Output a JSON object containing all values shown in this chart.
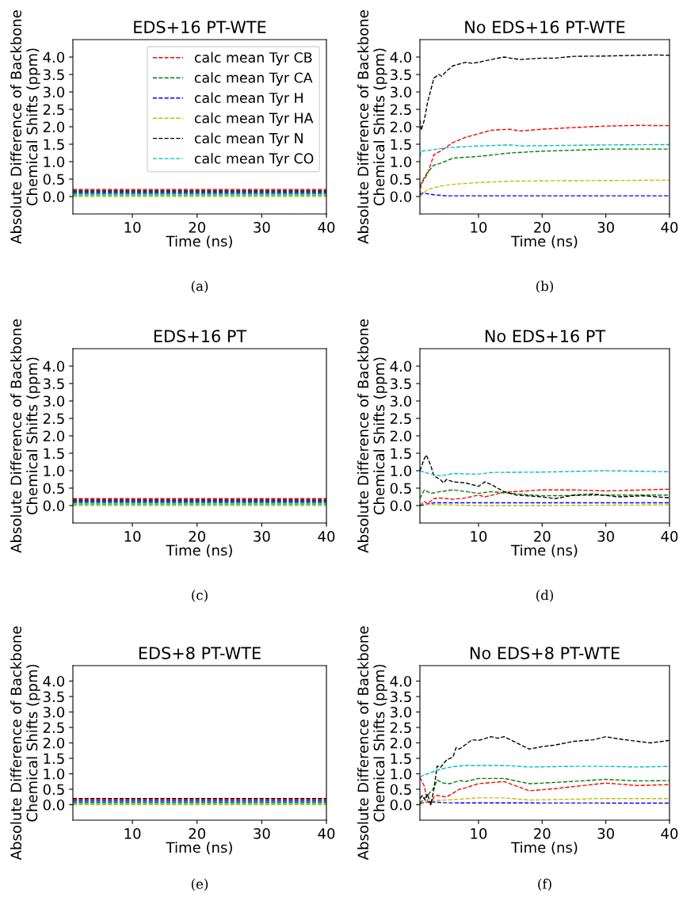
{
  "chart_data": [
    {
      "type": "line",
      "title": "EDS+16 PT-WTE",
      "xlabel": "Time (ns)",
      "ylabel": "Absolute Difference of Backbone\nChemical Shifts (ppm)",
      "xlim": [
        0.8,
        40
      ],
      "xticks": [
        10,
        20,
        30,
        40
      ],
      "ylim": [
        -0.5,
        4.5
      ],
      "yticks": [
        {
          "value": 0,
          "label": "0.0"
        },
        {
          "value": 0.5,
          "label": "0.5"
        },
        {
          "value": 1,
          "label": "1.0"
        },
        {
          "value": 1.5,
          "label": "1.5"
        },
        {
          "value": 2,
          "label": "2.0"
        },
        {
          "value": 2.5,
          "label": "2.5"
        },
        {
          "value": 3,
          "label": "3.0"
        },
        {
          "value": 3.5,
          "label": "3.5"
        },
        {
          "value": 4,
          "label": "4.0"
        }
      ],
      "grid": false,
      "legend": "top right",
      "line_style": "dashed",
      "annotations": [
        "(a)"
      ],
      "series": [
        {
          "name": "calc mean Tyr CB",
          "color": "#ff0000",
          "x": [
            0.8,
            5,
            40
          ],
          "values": [
            0.2,
            0.2,
            0.2
          ]
        },
        {
          "name": "calc mean Tyr CA",
          "color": "#008000",
          "x": [
            0.8,
            5,
            40
          ],
          "values": [
            0.08,
            0.08,
            0.08
          ]
        },
        {
          "name": "calc mean Tyr H",
          "color": "#0000ff",
          "x": [
            0.8,
            5,
            40
          ],
          "values": [
            0.12,
            0.12,
            0.12
          ]
        },
        {
          "name": "calc mean Tyr HA",
          "color": "#bfbf00",
          "x": [
            0.8,
            5,
            40
          ],
          "values": [
            0.0,
            0.0,
            0.0
          ]
        },
        {
          "name": "calc mean Tyr N",
          "color": "#000000",
          "x": [
            0.8,
            5,
            40
          ],
          "values": [
            0.16,
            0.16,
            0.16
          ]
        },
        {
          "name": "calc mean Tyr CO",
          "color": "#00bfbf",
          "x": [
            0.8,
            5,
            40
          ],
          "values": [
            0.04,
            0.04,
            0.04
          ]
        }
      ]
    },
    {
      "type": "line",
      "title": "No EDS+16 PT-WTE",
      "xlabel": "Time (ns)",
      "ylabel": "Absolute Difference of Backbone\nChemical Shifts (ppm)",
      "xlim": [
        0.8,
        40
      ],
      "xticks": [
        10,
        20,
        30,
        40
      ],
      "ylim": [
        -0.5,
        4.5
      ],
      "yticks": [
        {
          "value": 0,
          "label": "0.0"
        },
        {
          "value": 0.5,
          "label": "0.5"
        },
        {
          "value": 1,
          "label": "1.0"
        },
        {
          "value": 1.5,
          "label": "1.5"
        },
        {
          "value": 2,
          "label": "2.0"
        },
        {
          "value": 2.5,
          "label": "2.5"
        },
        {
          "value": 3,
          "label": "3.0"
        },
        {
          "value": 3.5,
          "label": "3.5"
        },
        {
          "value": 4,
          "label": "4.0"
        }
      ],
      "grid": false,
      "line_style": "dashed",
      "annotations": [
        "(b)"
      ],
      "series": [
        {
          "color": "#ff0000",
          "x": [
            0.8,
            1,
            1.5,
            2,
            3,
            4,
            6,
            8,
            10,
            12,
            15,
            16.5,
            20,
            25,
            30,
            35,
            40
          ],
          "values": [
            0.05,
            0.35,
            0.5,
            0.65,
            1.2,
            1.3,
            1.55,
            1.7,
            1.8,
            1.9,
            1.93,
            1.88,
            1.93,
            1.98,
            2.02,
            2.04,
            2.03
          ]
        },
        {
          "color": "#008000",
          "x": [
            0.8,
            1.5,
            2,
            3,
            4,
            6,
            10,
            15,
            20,
            30,
            40
          ],
          "values": [
            0.3,
            0.55,
            0.7,
            0.9,
            0.95,
            1.1,
            1.15,
            1.25,
            1.3,
            1.36,
            1.36
          ]
        },
        {
          "color": "#0000ff",
          "x": [
            0.8,
            1.2,
            3,
            5,
            40
          ],
          "values": [
            0.05,
            0.1,
            0.05,
            0.02,
            0.02
          ]
        },
        {
          "color": "#bfbf00",
          "x": [
            0.8,
            2,
            4,
            6,
            10,
            15,
            20,
            30,
            40
          ],
          "values": [
            0.0,
            0.2,
            0.3,
            0.35,
            0.4,
            0.44,
            0.45,
            0.46,
            0.47
          ]
        },
        {
          "color": "#000000",
          "x": [
            0.8,
            1,
            1.5,
            2,
            3,
            3.8,
            4.2,
            5,
            6,
            8,
            9,
            10,
            12,
            14,
            15,
            16.5,
            20,
            22,
            25,
            30,
            35,
            38,
            40
          ],
          "values": [
            2.2,
            1.9,
            2.2,
            2.7,
            3.4,
            3.5,
            3.45,
            3.6,
            3.75,
            3.85,
            3.82,
            3.85,
            3.93,
            4.0,
            3.97,
            3.93,
            3.97,
            3.97,
            4.02,
            4.03,
            4.05,
            4.06,
            4.05
          ]
        },
        {
          "color": "#00bfbf",
          "x": [
            0.8,
            1,
            2,
            5,
            10,
            15,
            17,
            20,
            30,
            40
          ],
          "values": [
            1.15,
            1.3,
            1.32,
            1.4,
            1.45,
            1.48,
            1.45,
            1.46,
            1.48,
            1.49
          ]
        }
      ]
    },
    {
      "type": "line",
      "title": "EDS+16 PT",
      "xlabel": "Time (ns)",
      "ylabel": "Absolute Difference of Backbone\nChemical Shifts (ppm)",
      "xlim": [
        0.8,
        40
      ],
      "xticks": [
        10,
        20,
        30,
        40
      ],
      "ylim": [
        -0.5,
        4.5
      ],
      "yticks": [
        {
          "value": 0,
          "label": "0.0"
        },
        {
          "value": 0.5,
          "label": "0.5"
        },
        {
          "value": 1,
          "label": "1.0"
        },
        {
          "value": 1.5,
          "label": "1.5"
        },
        {
          "value": 2,
          "label": "2.0"
        },
        {
          "value": 2.5,
          "label": "2.5"
        },
        {
          "value": 3,
          "label": "3.0"
        },
        {
          "value": 3.5,
          "label": "3.5"
        },
        {
          "value": 4,
          "label": "4.0"
        }
      ],
      "grid": false,
      "line_style": "dashed",
      "annotations": [
        "(c)"
      ],
      "series": [
        {
          "color": "#ff0000",
          "x": [
            0.8,
            5,
            40
          ],
          "values": [
            0.2,
            0.2,
            0.2
          ]
        },
        {
          "color": "#008000",
          "x": [
            0.8,
            5,
            40
          ],
          "values": [
            0.08,
            0.08,
            0.08
          ]
        },
        {
          "color": "#0000ff",
          "x": [
            0.8,
            5,
            40
          ],
          "values": [
            0.12,
            0.12,
            0.12
          ]
        },
        {
          "color": "#bfbf00",
          "x": [
            0.8,
            5,
            40
          ],
          "values": [
            0.0,
            0.0,
            0.0
          ]
        },
        {
          "color": "#000000",
          "x": [
            0.8,
            5,
            40
          ],
          "values": [
            0.16,
            0.16,
            0.16
          ]
        },
        {
          "color": "#00bfbf",
          "x": [
            0.8,
            5,
            40
          ],
          "values": [
            0.04,
            0.04,
            0.04
          ]
        }
      ]
    },
    {
      "type": "line",
      "title": "No EDS+16 PT",
      "xlabel": "Time (ns)",
      "ylabel": "Absolute Difference of Backbone\nChemical Shifts (ppm)",
      "xlim": [
        0.8,
        40
      ],
      "xticks": [
        10,
        20,
        30,
        40
      ],
      "ylim": [
        -0.5,
        4.5
      ],
      "yticks": [
        {
          "value": 0,
          "label": "0.0"
        },
        {
          "value": 0.5,
          "label": "0.5"
        },
        {
          "value": 1,
          "label": "1.0"
        },
        {
          "value": 1.5,
          "label": "1.5"
        },
        {
          "value": 2,
          "label": "2.0"
        },
        {
          "value": 2.5,
          "label": "2.5"
        },
        {
          "value": 3,
          "label": "3.0"
        },
        {
          "value": 3.5,
          "label": "3.5"
        },
        {
          "value": 4,
          "label": "4.0"
        }
      ],
      "grid": false,
      "line_style": "dashed",
      "annotations": [
        "(d)"
      ],
      "series": [
        {
          "color": "#ff0000",
          "x": [
            0.8,
            1.5,
            2,
            3,
            4,
            6,
            8,
            10,
            11,
            14,
            20,
            25,
            30,
            40
          ],
          "values": [
            0.0,
            0.12,
            0.05,
            0.2,
            0.22,
            0.18,
            0.22,
            0.3,
            0.25,
            0.38,
            0.45,
            0.45,
            0.42,
            0.47
          ]
        },
        {
          "color": "#008000",
          "x": [
            0.8,
            1.5,
            2.5,
            4,
            6,
            8,
            10,
            12,
            15,
            20,
            30,
            40
          ],
          "values": [
            0.2,
            0.45,
            0.35,
            0.4,
            0.45,
            0.4,
            0.35,
            0.4,
            0.35,
            0.28,
            0.3,
            0.3
          ]
        },
        {
          "color": "#0000ff",
          "x": [
            0.8,
            3,
            40
          ],
          "values": [
            0.0,
            0.08,
            0.08
          ]
        },
        {
          "color": "#bfbf00",
          "x": [
            0.8,
            2,
            10,
            20,
            40
          ],
          "values": [
            0.05,
            0.03,
            0.0,
            0.0,
            0.02
          ]
        },
        {
          "color": "#000000",
          "x": [
            0.8,
            1.5,
            1.8,
            2.5,
            3,
            4,
            4.5,
            5,
            6,
            8,
            10,
            11,
            12,
            14,
            16,
            20,
            22,
            25,
            28,
            32,
            36,
            40
          ],
          "values": [
            1.0,
            1.35,
            1.45,
            1.15,
            0.85,
            0.75,
            0.65,
            0.75,
            0.68,
            0.65,
            0.55,
            0.68,
            0.6,
            0.4,
            0.3,
            0.25,
            0.2,
            0.3,
            0.33,
            0.25,
            0.28,
            0.22
          ]
        },
        {
          "color": "#00bfbf",
          "x": [
            0.8,
            2,
            4,
            6,
            10,
            12,
            20,
            30,
            40
          ],
          "values": [
            1.0,
            0.93,
            0.85,
            0.92,
            0.9,
            0.95,
            0.96,
            1.0,
            0.97
          ]
        }
      ]
    },
    {
      "type": "line",
      "title": "EDS+8 PT-WTE",
      "xlabel": "Time (ns)",
      "ylabel": "Absolute Difference of Backbone\nChemical Shifts (ppm)",
      "xlim": [
        0.8,
        40
      ],
      "xticks": [
        10,
        20,
        30,
        40
      ],
      "ylim": [
        -0.5,
        4.5
      ],
      "yticks": [
        {
          "value": 0,
          "label": "0.0"
        },
        {
          "value": 0.5,
          "label": "0.5"
        },
        {
          "value": 1,
          "label": "1.0"
        },
        {
          "value": 1.5,
          "label": "1.5"
        },
        {
          "value": 2,
          "label": "2.0"
        },
        {
          "value": 2.5,
          "label": "2.5"
        },
        {
          "value": 3,
          "label": "3.0"
        },
        {
          "value": 3.5,
          "label": "3.5"
        },
        {
          "value": 4,
          "label": "4.0"
        }
      ],
      "grid": false,
      "line_style": "dashed",
      "annotations": [
        "(e)"
      ],
      "series": [
        {
          "color": "#ff0000",
          "x": [
            0.8,
            5,
            40
          ],
          "values": [
            0.16,
            0.16,
            0.16
          ]
        },
        {
          "color": "#008000",
          "x": [
            0.8,
            5,
            40
          ],
          "values": [
            0.08,
            0.08,
            0.08
          ]
        },
        {
          "color": "#0000ff",
          "x": [
            0.8,
            5,
            40
          ],
          "values": [
            0.12,
            0.12,
            0.12
          ]
        },
        {
          "color": "#bfbf00",
          "x": [
            0.8,
            5,
            40
          ],
          "values": [
            0.0,
            0.0,
            0.0
          ]
        },
        {
          "color": "#000000",
          "x": [
            0.8,
            5,
            40
          ],
          "values": [
            0.2,
            0.2,
            0.2
          ]
        },
        {
          "color": "#00bfbf",
          "x": [
            0.8,
            5,
            40
          ],
          "values": [
            0.04,
            0.04,
            0.04
          ]
        }
      ]
    },
    {
      "type": "line",
      "title": "No EDS+8 PT-WTE",
      "xlabel": "Time (ns)",
      "ylabel": "Absolute Difference of Backbone\nChemical Shifts (ppm)",
      "xlim": [
        0.8,
        40
      ],
      "xticks": [
        10,
        20,
        30,
        40
      ],
      "ylim": [
        -0.5,
        4.5
      ],
      "yticks": [
        {
          "value": 0,
          "label": "0.0"
        },
        {
          "value": 0.5,
          "label": "0.5"
        },
        {
          "value": 1,
          "label": "1.0"
        },
        {
          "value": 1.5,
          "label": "1.5"
        },
        {
          "value": 2,
          "label": "2.0"
        },
        {
          "value": 2.5,
          "label": "2.5"
        },
        {
          "value": 3,
          "label": "3.0"
        },
        {
          "value": 3.5,
          "label": "3.5"
        },
        {
          "value": 4,
          "label": "4.0"
        }
      ],
      "grid": false,
      "line_style": "dashed",
      "annotations": [
        "(f)"
      ],
      "series": [
        {
          "color": "#ff0000",
          "x": [
            0.8,
            1.5,
            2,
            2.5,
            3,
            3.5,
            5,
            7,
            8,
            10,
            14,
            18,
            22,
            30,
            35,
            40
          ],
          "values": [
            0.88,
            0.6,
            0.1,
            0.0,
            0.25,
            0.3,
            0.25,
            0.5,
            0.55,
            0.68,
            0.75,
            0.45,
            0.52,
            0.7,
            0.62,
            0.65
          ]
        },
        {
          "color": "#008000",
          "x": [
            0.8,
            2,
            3,
            3.5,
            4.5,
            5.5,
            7,
            8,
            10,
            14,
            18,
            22,
            30,
            35,
            40
          ],
          "values": [
            0.05,
            0.3,
            0.55,
            0.8,
            0.7,
            0.68,
            0.78,
            0.75,
            0.85,
            0.85,
            0.68,
            0.72,
            0.82,
            0.77,
            0.78
          ]
        },
        {
          "color": "#0000ff",
          "x": [
            0.8,
            2,
            5,
            40
          ],
          "values": [
            0.03,
            0.1,
            0.06,
            0.05
          ]
        },
        {
          "color": "#bfbf00",
          "x": [
            0.8,
            2,
            5,
            10,
            14,
            18,
            30,
            40
          ],
          "values": [
            0.0,
            0.12,
            0.15,
            0.22,
            0.22,
            0.15,
            0.2,
            0.2
          ]
        },
        {
          "color": "#000000",
          "x": [
            0.8,
            1.2,
            1.6,
            2,
            2.5,
            3,
            3.5,
            4,
            5,
            6,
            6.5,
            7,
            8,
            9,
            10,
            12,
            13,
            14,
            18,
            20,
            22,
            25,
            28,
            30,
            32,
            35,
            37,
            40
          ],
          "values": [
            0.2,
            0.3,
            0.15,
            0.35,
            0.0,
            0.5,
            1.25,
            1.2,
            1.45,
            1.55,
            1.85,
            1.8,
            1.95,
            2.1,
            2.08,
            2.2,
            2.15,
            2.2,
            1.8,
            1.88,
            1.93,
            2.05,
            2.1,
            2.2,
            2.13,
            2.05,
            2.0,
            2.08
          ]
        },
        {
          "color": "#00bfbf",
          "x": [
            0.8,
            2,
            4,
            6,
            8,
            14,
            18,
            25,
            30,
            35,
            40
          ],
          "values": [
            0.9,
            1.0,
            1.15,
            1.23,
            1.27,
            1.27,
            1.22,
            1.24,
            1.24,
            1.22,
            1.24
          ]
        }
      ]
    }
  ]
}
